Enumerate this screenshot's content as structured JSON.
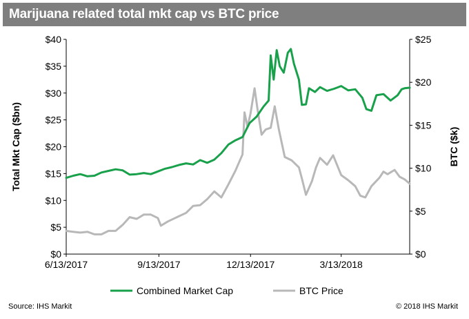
{
  "header": {
    "title": "Marijuana related total mkt cap vs BTC price"
  },
  "footer": {
    "source": "Source: IHS Markit",
    "copyright": "© 2018 IHS Markit"
  },
  "chart_data": {
    "type": "line",
    "x_ticks": [
      "6/13/2017",
      "9/13/2017",
      "12/13/2017",
      "3/13/2018"
    ],
    "x_range": [
      "2017-06-13",
      "2018-05-20"
    ],
    "y_left": {
      "label": "Total Mkt  Cap  ($bn)",
      "ticks": [
        "$0",
        "$5",
        "$10",
        "$15",
        "$20",
        "$25",
        "$30",
        "$35",
        "$40"
      ],
      "range": [
        0,
        40
      ]
    },
    "y_right": {
      "label": "BTC  ($k)",
      "ticks": [
        "$0",
        "$5",
        "$10",
        "$15",
        "$20",
        "$25"
      ],
      "range": [
        0,
        25
      ]
    },
    "grid": false,
    "legend_position": "bottom",
    "series": [
      {
        "name": "Combined Market Cap",
        "axis": "left",
        "color": "#19a04b",
        "points": [
          [
            "2017-06-13",
            14.2
          ],
          [
            "2017-06-20",
            14.6
          ],
          [
            "2017-06-27",
            14.9
          ],
          [
            "2017-07-04",
            14.5
          ],
          [
            "2017-07-11",
            14.6
          ],
          [
            "2017-07-18",
            15.2
          ],
          [
            "2017-07-25",
            15.5
          ],
          [
            "2017-08-01",
            15.8
          ],
          [
            "2017-08-08",
            15.6
          ],
          [
            "2017-08-15",
            14.8
          ],
          [
            "2017-08-22",
            14.9
          ],
          [
            "2017-08-29",
            15.1
          ],
          [
            "2017-09-05",
            14.9
          ],
          [
            "2017-09-12",
            15.4
          ],
          [
            "2017-09-19",
            15.9
          ],
          [
            "2017-09-26",
            16.2
          ],
          [
            "2017-10-03",
            16.6
          ],
          [
            "2017-10-10",
            16.9
          ],
          [
            "2017-10-17",
            16.7
          ],
          [
            "2017-10-24",
            17.5
          ],
          [
            "2017-10-31",
            17.0
          ],
          [
            "2017-11-07",
            17.6
          ],
          [
            "2017-11-14",
            18.8
          ],
          [
            "2017-11-21",
            20.4
          ],
          [
            "2017-11-28",
            21.2
          ],
          [
            "2017-12-05",
            21.8
          ],
          [
            "2017-12-12",
            24.4
          ],
          [
            "2017-12-19",
            25.6
          ],
          [
            "2017-12-26",
            27.5
          ],
          [
            "2017-12-31",
            28.6
          ],
          [
            "2018-01-02",
            37.0
          ],
          [
            "2018-01-05",
            32.5
          ],
          [
            "2018-01-08",
            38.0
          ],
          [
            "2018-01-11",
            35.0
          ],
          [
            "2018-01-15",
            33.8
          ],
          [
            "2018-01-19",
            37.5
          ],
          [
            "2018-01-22",
            38.2
          ],
          [
            "2018-01-25",
            35.5
          ],
          [
            "2018-01-30",
            32.5
          ],
          [
            "2018-02-02",
            27.8
          ],
          [
            "2018-02-06",
            27.9
          ],
          [
            "2018-02-09",
            30.9
          ],
          [
            "2018-02-15",
            30.2
          ],
          [
            "2018-02-20",
            31.1
          ],
          [
            "2018-02-27",
            30.4
          ],
          [
            "2018-03-06",
            30.8
          ],
          [
            "2018-03-13",
            31.3
          ],
          [
            "2018-03-20",
            30.5
          ],
          [
            "2018-03-27",
            30.7
          ],
          [
            "2018-04-03",
            29.1
          ],
          [
            "2018-04-07",
            27.0
          ],
          [
            "2018-04-12",
            26.7
          ],
          [
            "2018-04-17",
            29.6
          ],
          [
            "2018-04-24",
            29.8
          ],
          [
            "2018-05-01",
            28.6
          ],
          [
            "2018-05-08",
            29.6
          ],
          [
            "2018-05-12",
            30.7
          ],
          [
            "2018-05-15",
            30.9
          ],
          [
            "2018-05-20",
            31.0
          ]
        ]
      },
      {
        "name": "BTC Price",
        "axis": "right",
        "color": "#b8b8b8",
        "points": [
          [
            "2017-06-13",
            2.7
          ],
          [
            "2017-06-20",
            2.6
          ],
          [
            "2017-06-27",
            2.5
          ],
          [
            "2017-07-04",
            2.6
          ],
          [
            "2017-07-11",
            2.3
          ],
          [
            "2017-07-18",
            2.3
          ],
          [
            "2017-07-25",
            2.7
          ],
          [
            "2017-08-01",
            2.7
          ],
          [
            "2017-08-08",
            3.4
          ],
          [
            "2017-08-15",
            4.3
          ],
          [
            "2017-08-22",
            4.1
          ],
          [
            "2017-08-29",
            4.6
          ],
          [
            "2017-09-05",
            4.6
          ],
          [
            "2017-09-12",
            4.2
          ],
          [
            "2017-09-15",
            3.3
          ],
          [
            "2017-09-22",
            3.8
          ],
          [
            "2017-10-01",
            4.3
          ],
          [
            "2017-10-10",
            4.8
          ],
          [
            "2017-10-17",
            5.6
          ],
          [
            "2017-10-24",
            5.7
          ],
          [
            "2017-10-31",
            6.4
          ],
          [
            "2017-11-07",
            7.3
          ],
          [
            "2017-11-14",
            6.6
          ],
          [
            "2017-11-21",
            8.1
          ],
          [
            "2017-11-28",
            9.7
          ],
          [
            "2017-12-05",
            11.6
          ],
          [
            "2017-12-07",
            16.5
          ],
          [
            "2017-12-10",
            14.8
          ],
          [
            "2017-12-13",
            16.4
          ],
          [
            "2017-12-17",
            19.3
          ],
          [
            "2017-12-20",
            16.8
          ],
          [
            "2017-12-24",
            13.9
          ],
          [
            "2017-12-28",
            14.5
          ],
          [
            "2018-01-02",
            14.7
          ],
          [
            "2018-01-06",
            17.2
          ],
          [
            "2018-01-10",
            14.6
          ],
          [
            "2018-01-16",
            11.3
          ],
          [
            "2018-01-23",
            10.9
          ],
          [
            "2018-01-30",
            10.1
          ],
          [
            "2018-02-02",
            8.8
          ],
          [
            "2018-02-06",
            6.9
          ],
          [
            "2018-02-12",
            8.5
          ],
          [
            "2018-02-16",
            10.1
          ],
          [
            "2018-02-20",
            11.2
          ],
          [
            "2018-02-27",
            10.4
          ],
          [
            "2018-03-05",
            11.5
          ],
          [
            "2018-03-13",
            9.2
          ],
          [
            "2018-03-20",
            8.6
          ],
          [
            "2018-03-27",
            7.9
          ],
          [
            "2018-04-01",
            6.8
          ],
          [
            "2018-04-06",
            6.6
          ],
          [
            "2018-04-12",
            7.9
          ],
          [
            "2018-04-20",
            8.9
          ],
          [
            "2018-04-24",
            9.6
          ],
          [
            "2018-04-28",
            9.3
          ],
          [
            "2018-05-05",
            9.8
          ],
          [
            "2018-05-10",
            9.0
          ],
          [
            "2018-05-15",
            8.7
          ],
          [
            "2018-05-20",
            8.2
          ]
        ]
      }
    ]
  }
}
